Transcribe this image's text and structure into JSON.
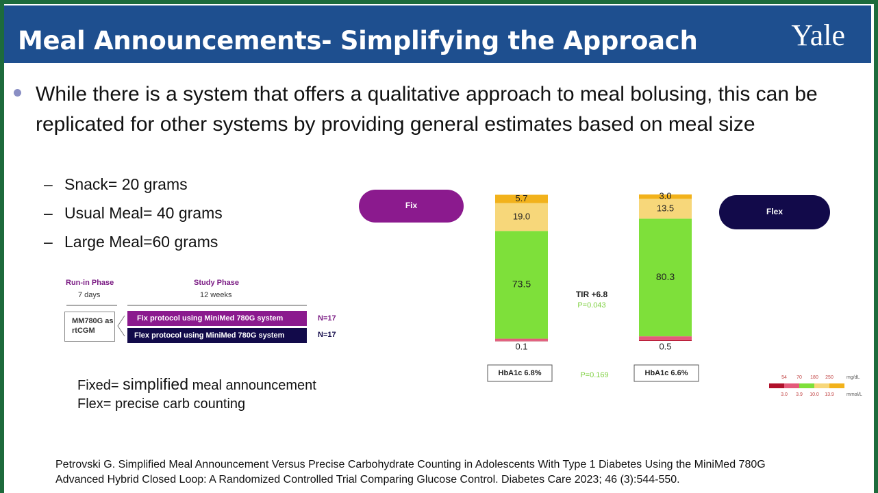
{
  "header": {
    "title": "Meal Announcements- Simplifying the Approach",
    "logo": "Yale"
  },
  "bullet": "While there is a system that offers a qualitative approach to meal bolusing, this can be replicated for other systems by providing general estimates based on meal size",
  "sub_bullets": [
    "Snack= 20 grams",
    "Usual Meal= 40 grams",
    "Large Meal=60 grams"
  ],
  "design": {
    "runin_title": "Run-in Phase",
    "runin_duration": "7 days",
    "study_title": "Study Phase",
    "study_duration": "12 weeks",
    "device": "MM780G as rtCGM",
    "arms": [
      {
        "label": "Fix protocol using MiniMed 780G system",
        "n": "N=17"
      },
      {
        "label": "Flex protocol using MiniMed 780G system",
        "n": "N=17"
      }
    ]
  },
  "definitions": {
    "fixed_prefix": "Fixed=",
    "fixed_emphasis": "simplified",
    "fixed_suffix": "meal announcement",
    "flex": "Flex= precise carb counting"
  },
  "citation": "Petrovski G.  Simplified Meal Announcement Versus Precise Carbohydrate Counting in Adolescents With Type 1 Diabetes Using the MiniMed 780G Advanced Hybrid Closed Loop: A Randomized Controlled Trial Comparing Glucose Control.  Diabetes Care 2023; 46 (3):544-550.",
  "chart_data": {
    "type": "stacked-bar",
    "categories": [
      "Fix",
      "Flex"
    ],
    "category_colors": [
      "#8b1a8e",
      "#120a4a"
    ],
    "series": [
      {
        "color": "#b0102a",
        "values": [
          0.1,
          0.5
        ]
      },
      {
        "color": "#e45a7a",
        "values": [
          1.5,
          2.7
        ]
      },
      {
        "color": "#7ee03a",
        "values": [
          73.5,
          80.3
        ],
        "value_labels": [
          "73.5",
          "80.3"
        ]
      },
      {
        "color": "#f7d77a",
        "values": [
          19.0,
          13.5
        ],
        "value_labels": [
          "19.0",
          "13.5"
        ]
      },
      {
        "color": "#f2b21b",
        "values": [
          5.7,
          3.0
        ],
        "value_labels": [
          "5.7",
          "3.0"
        ]
      }
    ],
    "annotations": {
      "tir": "TIR +6.8",
      "tir_p": "P=0.043",
      "hba1c": [
        "HbA1c 6.8%",
        "HbA1c 6.6%"
      ],
      "hba1c_p": "P=0.169"
    },
    "legend": {
      "mgdl": [
        54,
        70,
        180,
        250
      ],
      "mgdl_unit": "mg/dL",
      "mmol": [
        "3.0",
        "3.9",
        "10.0",
        "13.9"
      ],
      "mmol_unit": "mmol/L"
    }
  }
}
